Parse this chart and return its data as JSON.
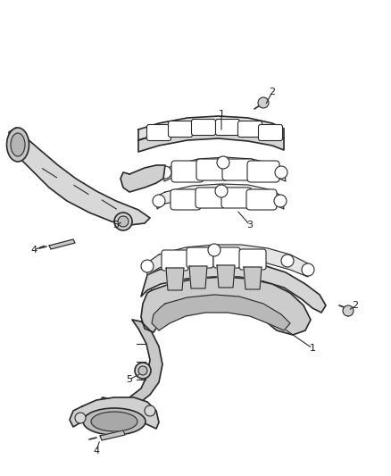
{
  "bg_color": "#ffffff",
  "line_color": "#2a2a2a",
  "label_color": "#1a1a1a",
  "fig_width": 4.38,
  "fig_height": 5.33,
  "dpi": 100,
  "upper_manifold": {
    "body_color": "#e0e0e0",
    "port_color": "#ffffff",
    "pipe_color": "#d0d0d0"
  },
  "lower_manifold": {
    "body_color": "#d8d8d8",
    "dark_color": "#b0b0b0",
    "pipe_color": "#c0c0c0"
  }
}
